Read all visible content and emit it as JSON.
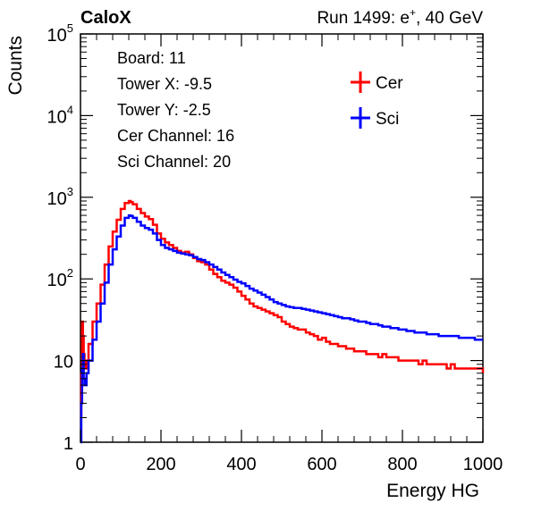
{
  "header": {
    "left_label": "CaloX",
    "right_prefix": "Run 1499: e",
    "right_sup": "+",
    "right_suffix": ", 40 GeV"
  },
  "info_lines": [
    "Board: 11",
    "Tower X: -9.5",
    "Tower Y: -2.5",
    "Cer Channel: 16",
    "Sci Channel: 20"
  ],
  "colors": {
    "cer": "#ff0000",
    "sci": "#0000ff",
    "axis": "#000000"
  },
  "chart_data": {
    "type": "line",
    "xlabel": "Energy HG",
    "ylabel": "Counts",
    "xlim": [
      0,
      1000
    ],
    "ylim": [
      1,
      100000
    ],
    "yscale": "log",
    "x_ticks": [
      0,
      200,
      400,
      600,
      800,
      1000
    ],
    "x_tick_labels": [
      "0",
      "200",
      "400",
      "600",
      "800",
      "1000"
    ],
    "y_ticks": [
      {
        "value": 1,
        "base": "1",
        "exp": ""
      },
      {
        "value": 10,
        "base": "10",
        "exp": ""
      },
      {
        "value": 100,
        "base": "10",
        "exp": "2"
      },
      {
        "value": 1000,
        "base": "10",
        "exp": "3"
      },
      {
        "value": 10000,
        "base": "10",
        "exp": "4"
      },
      {
        "value": 100000,
        "base": "10",
        "exp": "5"
      }
    ],
    "legend": {
      "position": "top-right"
    },
    "series": [
      {
        "name": "Cer",
        "color": "#ff0000",
        "x": [
          0,
          2,
          4,
          6,
          8,
          10,
          15,
          20,
          30,
          40,
          50,
          60,
          70,
          80,
          90,
          100,
          110,
          120,
          125,
          130,
          140,
          150,
          160,
          170,
          180,
          190,
          200,
          210,
          220,
          230,
          240,
          250,
          260,
          270,
          280,
          290,
          300,
          310,
          320,
          330,
          340,
          350,
          360,
          370,
          380,
          390,
          400,
          410,
          420,
          430,
          440,
          450,
          460,
          470,
          480,
          490,
          500,
          510,
          520,
          530,
          540,
          550,
          560,
          570,
          580,
          590,
          600,
          610,
          620,
          630,
          640,
          650,
          660,
          670,
          680,
          690,
          700,
          710,
          720,
          730,
          740,
          750,
          760,
          770,
          780,
          790,
          800,
          810,
          820,
          830,
          840,
          850,
          860,
          870,
          880,
          890,
          900,
          910,
          920,
          930,
          940,
          950,
          960,
          970,
          980,
          990,
          1000
        ],
        "values": [
          2,
          7,
          30,
          20,
          12,
          8,
          10,
          16,
          30,
          50,
          85,
          150,
          250,
          380,
          530,
          720,
          850,
          900,
          870,
          820,
          720,
          640,
          580,
          540,
          460,
          360,
          310,
          280,
          260,
          240,
          220,
          210,
          215,
          200,
          180,
          165,
          160,
          150,
          130,
          115,
          105,
          95,
          90,
          85,
          78,
          70,
          62,
          56,
          50,
          46,
          44,
          42,
          40,
          38,
          36,
          34,
          30,
          28,
          26,
          25,
          24,
          24,
          22,
          21,
          20,
          18,
          19,
          17,
          16,
          16,
          15,
          15,
          14,
          14,
          13,
          13,
          13,
          12,
          12,
          12,
          11,
          12,
          11,
          11,
          11,
          10,
          10,
          10,
          10,
          10,
          9,
          10,
          9,
          9,
          9,
          9,
          9,
          8,
          9,
          8,
          8,
          8,
          8,
          8,
          8,
          8,
          7
        ]
      },
      {
        "name": "Sci",
        "color": "#0000ff",
        "x": [
          0,
          2,
          4,
          6,
          8,
          10,
          15,
          20,
          30,
          40,
          50,
          60,
          70,
          80,
          90,
          100,
          110,
          120,
          125,
          130,
          140,
          150,
          160,
          170,
          180,
          190,
          200,
          210,
          220,
          230,
          240,
          250,
          260,
          270,
          280,
          290,
          300,
          310,
          320,
          330,
          340,
          350,
          360,
          370,
          380,
          390,
          400,
          410,
          420,
          430,
          440,
          450,
          460,
          470,
          480,
          490,
          500,
          510,
          520,
          530,
          540,
          550,
          560,
          570,
          580,
          590,
          600,
          610,
          620,
          630,
          640,
          650,
          660,
          670,
          680,
          690,
          700,
          710,
          720,
          730,
          740,
          750,
          760,
          770,
          780,
          790,
          800,
          810,
          820,
          830,
          840,
          850,
          860,
          870,
          880,
          890,
          900,
          910,
          920,
          930,
          940,
          950,
          960,
          970,
          980,
          990,
          1000
        ],
        "values": [
          1,
          3,
          8,
          12,
          6,
          5,
          7,
          10,
          18,
          30,
          50,
          90,
          150,
          230,
          330,
          450,
          560,
          600,
          590,
          560,
          500,
          450,
          420,
          400,
          360,
          300,
          260,
          240,
          230,
          220,
          210,
          205,
          200,
          195,
          185,
          175,
          170,
          160,
          150,
          140,
          130,
          120,
          112,
          105,
          98,
          92,
          88,
          82,
          76,
          72,
          68,
          64,
          60,
          56,
          52,
          50,
          48,
          46,
          45,
          44,
          44,
          43,
          42,
          41,
          40,
          39,
          38,
          37,
          36,
          35,
          34,
          33,
          33,
          32,
          31,
          30,
          30,
          29,
          28,
          28,
          27,
          26,
          26,
          25,
          25,
          24,
          24,
          23,
          23,
          22,
          22,
          22,
          21,
          21,
          21,
          20,
          20,
          20,
          20,
          20,
          19,
          19,
          19,
          19,
          18,
          18,
          18
        ]
      }
    ]
  }
}
